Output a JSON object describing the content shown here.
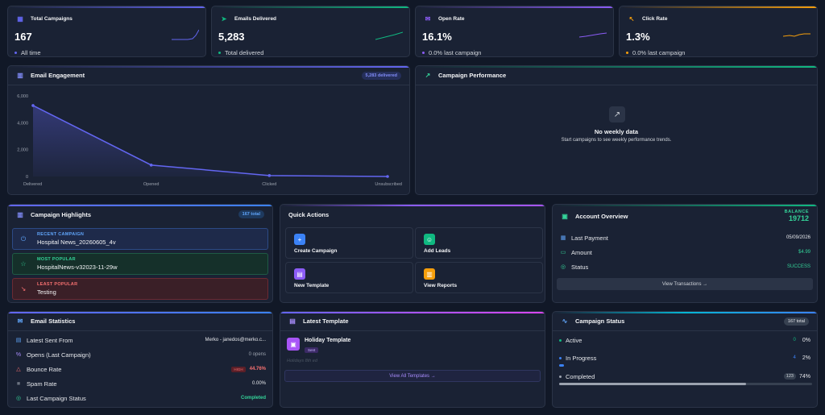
{
  "stats": [
    {
      "title": "Total Campaigns",
      "value": "167",
      "sub": "All time",
      "icon": "grid-icon",
      "accent": "#6366f1",
      "dot": "#6366f1",
      "spark": "#6366f1"
    },
    {
      "title": "Emails Delivered",
      "value": "5,283",
      "sub": "Total delivered",
      "icon": "send-icon",
      "accent": "#10b981",
      "dot": "#10b981",
      "spark": "#10b981"
    },
    {
      "title": "Open Rate",
      "value": "16.1%",
      "sub": "0.0% last campaign",
      "icon": "mail-open-icon",
      "accent": "#8b5cf6",
      "dot": "#8b5cf6",
      "spark": "#8b5cf6"
    },
    {
      "title": "Click Rate",
      "value": "1.3%",
      "sub": "0.0% last campaign",
      "icon": "cursor-icon",
      "accent": "#f59e0b",
      "dot": "#f59e0b",
      "spark": "#f59e0b"
    }
  ],
  "engagement": {
    "title": "Email Engagement",
    "badge": "5,283 delivered",
    "chart_data": {
      "type": "area",
      "categories": [
        "Delivered",
        "Opened",
        "Clicked",
        "Unsubscribed"
      ],
      "values": [
        5283,
        850,
        70,
        0
      ],
      "yticks": [
        "6,000",
        "4,000",
        "2,000",
        "0"
      ],
      "ylim": [
        0,
        6000
      ],
      "color": "#6366f1"
    }
  },
  "performance": {
    "title": "Campaign Performance",
    "empty_title": "No weekly data",
    "empty_sub": "Start campaigns to see weekly performance trends."
  },
  "highlights": {
    "title": "Campaign Highlights",
    "badge": "167 total",
    "items": [
      {
        "label": "RECENT CAMPAIGN",
        "value": "Hospital News_20260605_4v",
        "color": "#60a5fa",
        "bg": "#1e2a4a",
        "border": "#2c4a85"
      },
      {
        "label": "MOST POPULAR",
        "value": "HospitalNews-v32023-11-29w",
        "color": "#34d399",
        "bg": "#15302a",
        "border": "#1f5a45"
      },
      {
        "label": "LEAST POPULAR",
        "value": "Testing",
        "color": "#f87171",
        "bg": "#3a1f27",
        "border": "#6b2a33"
      }
    ]
  },
  "quick": {
    "title": "Quick Actions",
    "items": [
      {
        "label": "Create Campaign",
        "color": "#3b82f6",
        "icon": "plus-icon",
        "glyph": "+"
      },
      {
        "label": "Add Leads",
        "color": "#10b981",
        "icon": "users-icon",
        "glyph": "☺"
      },
      {
        "label": "New Template",
        "color": "#8b5cf6",
        "icon": "template-icon",
        "glyph": "▤"
      },
      {
        "label": "View Reports",
        "color": "#f59e0b",
        "icon": "report-icon",
        "glyph": "▥"
      }
    ]
  },
  "account": {
    "title": "Account Overview",
    "balance_label": "BALANCE",
    "balance": "19712",
    "rows": [
      {
        "label": "Last Payment",
        "value": "05/09/2026",
        "color": "#e5e7eb"
      },
      {
        "label": "Amount",
        "value": "$4.99",
        "color": "#34d399"
      },
      {
        "label": "Status",
        "value": "SUCCESS",
        "color": "#34d399"
      }
    ],
    "button": "View Transactions →"
  },
  "email_stats": {
    "title": "Email Statistics",
    "rows": [
      {
        "label": "Latest Sent From",
        "value": "Merko - janedos@merko.c...",
        "color": "#e5e7eb",
        "badge": ""
      },
      {
        "label": "Opens (Last Campaign)",
        "value": "0 opens",
        "color": "#9ca3af",
        "badge": ""
      },
      {
        "label": "Bounce Rate",
        "value": "44.76%",
        "color": "#f87171",
        "badge": "HIGH"
      },
      {
        "label": "Spam Rate",
        "value": "0.00%",
        "color": "#e5e7eb",
        "badge": ""
      },
      {
        "label": "Last Campaign Status",
        "value": "Completed",
        "color": "#34d399",
        "badge": ""
      }
    ]
  },
  "template": {
    "title": "Latest Template",
    "name": "Holiday Template",
    "tag": "Sent",
    "sub": "Holidays 8th ed",
    "button": "View All Templates →"
  },
  "status": {
    "title": "Campaign Status",
    "badge": "167 total",
    "rows": [
      {
        "label": "Active",
        "count": "0",
        "pct": "0%",
        "fraction": 0,
        "color": "#10b981"
      },
      {
        "label": "In Progress",
        "count": "4",
        "pct": "2%",
        "fraction": 0.02,
        "color": "#3b82f6"
      },
      {
        "label": "Completed",
        "count": "123",
        "pct": "74%",
        "fraction": 0.74,
        "color": "#9ca3af"
      }
    ]
  }
}
